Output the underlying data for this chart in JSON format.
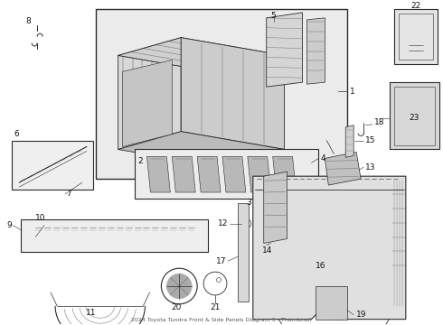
{
  "title": "2024 Toyota Tundra Front & Side Panels Diagram 3 - Thumbnail",
  "bg_color": "#ffffff",
  "fig_width": 4.9,
  "fig_height": 3.6,
  "dpi": 100,
  "line_color": "#2a2a2a",
  "light_gray": "#c8c8c8",
  "mid_gray": "#999999",
  "fill_gray": "#e8e8e8",
  "box_fill": "#ebebeb"
}
